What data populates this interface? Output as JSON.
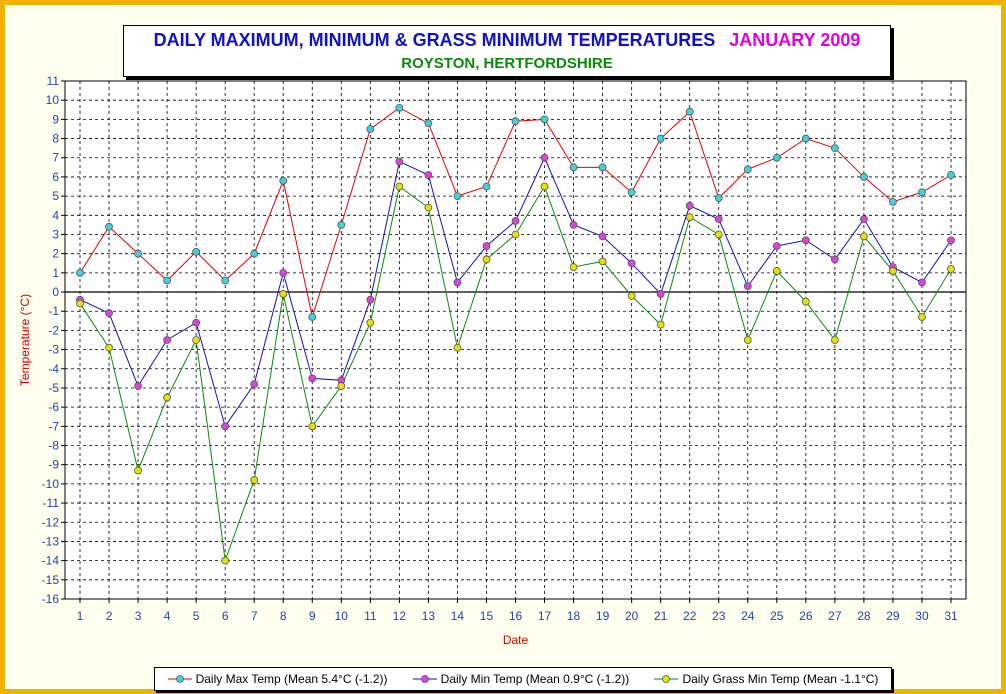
{
  "title": {
    "main": "DAILY MAXIMUM, MINIMUM & GRASS MINIMUM TEMPERATURES",
    "date": "JANUARY 2009",
    "subtitle": "ROYSTON, HERTFORDSHIRE"
  },
  "colors": {
    "frame_border": "#f0b400",
    "background": "#fffff0",
    "title_blue": "#1010c8",
    "title_magenta": "#e000e0",
    "subtitle_green": "#0a8a0a",
    "axis_label_red": "#cc0000",
    "tick_blue": "#2244aa"
  },
  "chart_data": {
    "type": "line",
    "xlabel": "Date",
    "ylabel": "Temperature (°C)",
    "x": [
      1,
      2,
      3,
      4,
      5,
      6,
      7,
      8,
      9,
      10,
      11,
      12,
      13,
      14,
      15,
      16,
      17,
      18,
      19,
      20,
      21,
      22,
      23,
      24,
      25,
      26,
      27,
      28,
      29,
      30,
      31
    ],
    "ylim": [
      -16,
      11
    ],
    "grid": true,
    "legend_position": "bottom",
    "series": [
      {
        "name": "Daily Max Temp (Mean 5.4°C (-1.2))",
        "line_color": "#e00000",
        "marker_color": "#40d0e0",
        "values": [
          1.0,
          3.4,
          2.0,
          0.6,
          2.1,
          0.6,
          2.0,
          5.8,
          -1.3,
          3.5,
          8.5,
          9.6,
          8.8,
          5.0,
          5.5,
          8.9,
          9.0,
          6.5,
          6.5,
          5.2,
          8.0,
          9.4,
          4.9,
          6.4,
          7.0,
          8.0,
          7.5,
          6.0,
          4.7,
          5.2,
          6.1
        ]
      },
      {
        "name": "Daily Min Temp (Mean 0.9°C (-1.2))",
        "line_color": "#1010c0",
        "marker_color": "#e040e0",
        "values": [
          -0.4,
          -1.1,
          -4.9,
          -2.5,
          -1.6,
          -7.0,
          -4.8,
          1.0,
          -4.5,
          -4.6,
          -0.4,
          6.8,
          6.1,
          0.5,
          2.4,
          3.7,
          7.0,
          3.5,
          2.9,
          1.5,
          -0.1,
          4.5,
          3.8,
          0.3,
          2.4,
          2.7,
          1.7,
          3.8,
          1.3,
          0.5,
          2.7
        ]
      },
      {
        "name": "Daily Grass Min Temp (Mean -1.1°C)",
        "line_color": "#0a8a0a",
        "marker_color": "#e8e000",
        "values": [
          -0.6,
          -2.9,
          -9.3,
          -5.5,
          -2.5,
          -14.0,
          -9.8,
          -0.1,
          -7.0,
          -4.9,
          -1.6,
          5.5,
          4.4,
          -2.9,
          1.7,
          3.0,
          5.5,
          1.3,
          1.6,
          -0.2,
          -1.7,
          3.9,
          3.0,
          -2.5,
          1.1,
          -0.5,
          -2.5,
          2.9,
          1.1,
          -1.3,
          1.2
        ]
      }
    ]
  }
}
